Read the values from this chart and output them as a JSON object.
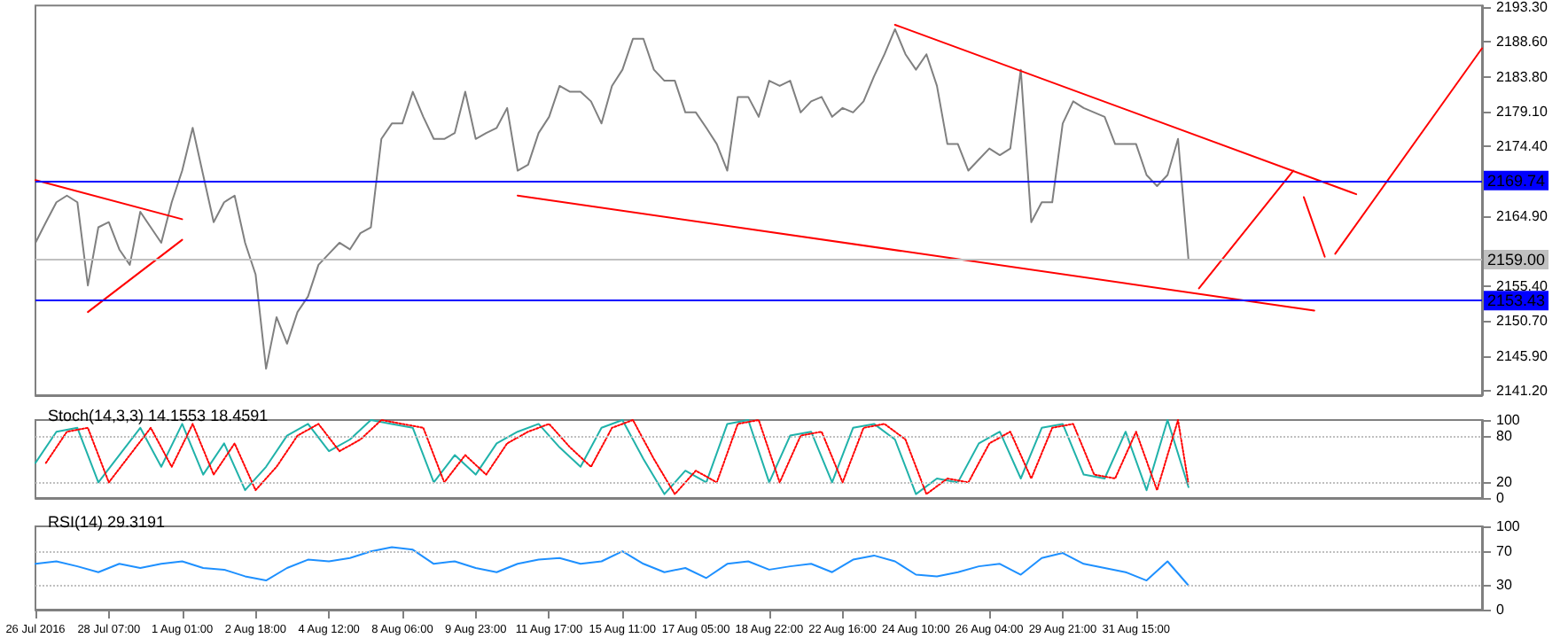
{
  "chart_data": [
    {
      "type": "line",
      "categories": [
        null,
        null,
        null,
        null,
        null,
        null,
        null,
        null,
        null,
        null,
        null,
        null,
        null,
        null,
        null,
        null,
        null,
        null,
        null,
        null,
        null,
        null,
        null,
        null,
        null,
        null,
        null,
        null,
        null,
        null,
        null,
        null,
        null,
        null,
        null,
        null,
        null,
        null,
        null,
        null,
        null,
        null,
        null,
        null,
        null,
        null,
        null,
        null,
        null,
        null,
        null,
        null,
        null,
        null,
        null,
        null,
        null,
        null,
        null,
        null,
        null,
        null,
        null,
        null,
        null,
        null,
        null,
        null,
        null,
        null,
        null,
        null,
        null,
        null,
        null,
        null,
        null,
        null,
        null,
        null,
        null,
        null,
        null,
        null,
        null,
        null,
        null,
        null,
        null,
        null,
        null,
        null,
        null,
        null,
        null,
        null,
        null,
        null,
        null,
        null,
        null,
        null,
        null,
        null,
        null,
        null,
        null,
        null,
        null,
        null,
        null,
        null,
        null,
        null,
        null,
        null,
        null,
        null,
        null,
        null,
        null,
        null,
        null,
        null,
        null,
        null,
        null,
        null,
        null,
        null,
        null,
        null,
        null,
        null,
        null,
        null,
        null,
        null,
        null
      ],
      "series": [
        {
          "color": "#808080",
          "values": [
            2161.3,
            2164.1,
            2166.8,
            2167.7,
            2166.8,
            2155.5,
            2163.4,
            2164.1,
            2160.4,
            2158.3,
            2165.5,
            2163.4,
            2161.3,
            2166.8,
            2171.1,
            2176.9,
            2170.5,
            2164.1,
            2166.8,
            2167.7,
            2161.3,
            2157.0,
            2144.2,
            2151.2,
            2147.6,
            2151.9,
            2154.0,
            2158.3,
            2159.8,
            2161.3,
            2160.4,
            2162.6,
            2163.4,
            2175.4,
            2177.5,
            2177.5,
            2181.8,
            2178.4,
            2175.4,
            2175.4,
            2176.2,
            2181.8,
            2175.4,
            2176.2,
            2176.9,
            2179.6,
            2171.1,
            2171.9,
            2176.2,
            2178.4,
            2182.6,
            2181.8,
            2181.8,
            2180.5,
            2177.5,
            2182.6,
            2184.8,
            2189.0,
            2189.0,
            2184.8,
            2183.3,
            2183.3,
            2179.0,
            2179.0,
            2176.9,
            2174.7,
            2171.1,
            2181.1,
            2181.1,
            2178.4,
            2183.3,
            2182.6,
            2183.3,
            2179.0,
            2180.5,
            2181.1,
            2178.4,
            2179.6,
            2179.0,
            2180.5,
            2183.9,
            2186.9,
            2190.3,
            2186.9,
            2184.8,
            2186.9,
            2182.6,
            2174.7,
            2174.7,
            2171.1,
            2172.6,
            2174.1,
            2173.2,
            2174.1,
            2184.8,
            2164.1,
            2166.8,
            2166.8,
            2177.5,
            2180.5,
            2179.6,
            2179.0,
            2178.4,
            2174.7,
            2174.7,
            2174.7,
            2170.5,
            2169.0,
            2170.5,
            2175.4,
            2159.0,
            null,
            null,
            null,
            null,
            null,
            null,
            null,
            null,
            null,
            null,
            null,
            null,
            null,
            null,
            null,
            null,
            null,
            null,
            null,
            null,
            null,
            null,
            null,
            null,
            null,
            null,
            null,
            null
          ]
        },
        {
          "type": "line",
          "color": "#ff0000",
          "values": [
            2169.8,
            null,
            null,
            null,
            null,
            null,
            null,
            null,
            null,
            null,
            null,
            null,
            null,
            null,
            2164.5,
            null,
            null,
            null,
            null,
            null,
            null,
            null,
            null,
            null,
            null,
            null,
            null,
            null,
            null,
            null,
            null,
            null,
            null,
            null,
            null,
            null,
            null,
            null,
            null,
            null,
            null,
            null,
            null,
            null,
            null,
            null,
            null,
            null,
            null,
            null,
            null,
            null,
            null,
            null,
            null,
            null,
            null,
            null,
            null,
            null,
            null,
            null,
            null,
            null,
            null,
            null,
            null,
            null,
            null,
            null,
            null,
            null,
            null,
            null,
            null,
            null,
            null,
            null,
            null,
            null,
            null,
            null,
            null,
            null,
            null,
            null,
            null,
            null,
            null,
            null,
            null,
            null,
            null,
            null,
            null,
            null,
            null,
            null,
            null,
            null,
            null,
            null,
            null,
            null,
            null,
            null,
            null,
            null,
            null,
            null,
            null,
            null,
            null,
            null,
            null,
            null,
            null,
            null,
            null,
            null,
            null,
            null,
            null,
            null,
            null,
            null,
            null,
            null,
            null,
            null,
            null,
            null,
            null,
            null,
            null,
            null,
            null,
            null,
            null
          ]
        },
        {
          "type": "line",
          "color": "#ff0000",
          "values": [
            null,
            null,
            null,
            null,
            null,
            2151.9,
            null,
            null,
            null,
            null,
            null,
            null,
            null,
            null,
            2161.7,
            null,
            null,
            null,
            null,
            null,
            null,
            null,
            null,
            null,
            null,
            null,
            null,
            null,
            null,
            null,
            null,
            null,
            null,
            null,
            null,
            null,
            null,
            null,
            null,
            null,
            null,
            null,
            null,
            null,
            null,
            null,
            null,
            null,
            null,
            null,
            null,
            null,
            null,
            null,
            null,
            null,
            null,
            null,
            null,
            null,
            null,
            null,
            null,
            null,
            null,
            null,
            null,
            null,
            null,
            null,
            null,
            null,
            null,
            null,
            null,
            null,
            null,
            null,
            null,
            null,
            null,
            null,
            null,
            null,
            null,
            null,
            null,
            null,
            null,
            null,
            null,
            null,
            null,
            null,
            null,
            null,
            null,
            null,
            null,
            null,
            null,
            null,
            null,
            null,
            null,
            null,
            null,
            null,
            null,
            null,
            null,
            null,
            null,
            null,
            null,
            null,
            null,
            null,
            null,
            null,
            null,
            null,
            null,
            null,
            null,
            null,
            null,
            null,
            null,
            null,
            null,
            null,
            null,
            null,
            null,
            null,
            null,
            null,
            null
          ]
        },
        {
          "type": "line",
          "color": "#ff0000",
          "values": [
            null,
            null,
            null,
            null,
            null,
            null,
            null,
            null,
            null,
            null,
            null,
            null,
            null,
            null,
            null,
            null,
            null,
            null,
            null,
            null,
            null,
            null,
            null,
            null,
            null,
            null,
            null,
            null,
            null,
            null,
            null,
            null,
            null,
            null,
            null,
            null,
            null,
            null,
            null,
            null,
            null,
            null,
            null,
            null,
            null,
            null,
            2167.7,
            null,
            null,
            null,
            null,
            null,
            null,
            null,
            null,
            null,
            null,
            null,
            null,
            null,
            null,
            null,
            null,
            null,
            null,
            null,
            null,
            null,
            null,
            null,
            null,
            null,
            null,
            null,
            null,
            null,
            null,
            null,
            null,
            null,
            null,
            null,
            null,
            null,
            null,
            null,
            null,
            null,
            null,
            null,
            null,
            null,
            null,
            null,
            null,
            null,
            null,
            null,
            null,
            null,
            null,
            null,
            null,
            null,
            null,
            null,
            null,
            null,
            null,
            null,
            null,
            null,
            null,
            null,
            null,
            null,
            null,
            null,
            null,
            null,
            null,
            null,
            2152.1,
            null,
            null,
            null,
            null,
            null,
            null,
            null,
            null,
            null,
            null,
            null,
            null,
            null,
            null,
            null,
            null
          ]
        },
        {
          "type": "line",
          "color": "#ff0000",
          "values": [
            null,
            null,
            null,
            null,
            null,
            null,
            null,
            null,
            null,
            null,
            null,
            null,
            null,
            null,
            null,
            null,
            null,
            null,
            null,
            null,
            null,
            null,
            null,
            null,
            null,
            null,
            null,
            null,
            null,
            null,
            null,
            null,
            null,
            null,
            null,
            null,
            null,
            null,
            null,
            null,
            null,
            null,
            null,
            null,
            null,
            null,
            null,
            null,
            null,
            null,
            null,
            null,
            null,
            null,
            null,
            null,
            null,
            null,
            null,
            null,
            null,
            null,
            null,
            null,
            null,
            null,
            null,
            null,
            null,
            null,
            null,
            null,
            null,
            null,
            null,
            null,
            null,
            null,
            null,
            null,
            null,
            null,
            2190.9,
            null,
            null,
            null,
            null,
            null,
            null,
            null,
            null,
            null,
            null,
            null,
            null,
            null,
            null,
            null,
            null,
            null,
            null,
            null,
            null,
            null,
            null,
            null,
            null,
            null,
            null,
            null,
            null,
            null,
            null,
            null,
            null,
            null,
            null,
            null,
            null,
            null,
            null,
            null,
            null,
            null,
            null,
            null,
            2167.9,
            null,
            null,
            null,
            null,
            null,
            null,
            null,
            null,
            null,
            null,
            null,
            null
          ]
        },
        {
          "type": "line",
          "color": "#ff0000",
          "values": [
            null,
            null,
            null,
            null,
            null,
            null,
            null,
            null,
            null,
            null,
            null,
            null,
            null,
            null,
            null,
            null,
            null,
            null,
            null,
            null,
            null,
            null,
            null,
            null,
            null,
            null,
            null,
            null,
            null,
            null,
            null,
            null,
            null,
            null,
            null,
            null,
            null,
            null,
            null,
            null,
            null,
            null,
            null,
            null,
            null,
            null,
            null,
            null,
            null,
            null,
            null,
            null,
            null,
            null,
            null,
            null,
            null,
            null,
            null,
            null,
            null,
            null,
            null,
            null,
            null,
            null,
            null,
            null,
            null,
            null,
            null,
            null,
            null,
            null,
            null,
            null,
            null,
            null,
            null,
            null,
            null,
            null,
            null,
            null,
            null,
            null,
            null,
            null,
            null,
            null,
            null,
            null,
            null,
            null,
            null,
            null,
            null,
            null,
            null,
            null,
            null,
            null,
            null,
            null,
            null,
            null,
            null,
            null,
            null,
            null,
            null,
            2155.1,
            null,
            null,
            null,
            null,
            null,
            null,
            null,
            null,
            2171.1,
            null,
            null,
            null,
            null,
            null,
            null,
            null,
            null,
            null,
            null,
            null,
            null,
            null,
            null,
            null,
            null,
            null,
            null
          ]
        },
        {
          "type": "line",
          "color": "#ff0000",
          "values": [
            null,
            null,
            null,
            null,
            null,
            null,
            null,
            null,
            null,
            null,
            null,
            null,
            null,
            null,
            null,
            null,
            null,
            null,
            null,
            null,
            null,
            null,
            null,
            null,
            null,
            null,
            null,
            null,
            null,
            null,
            null,
            null,
            null,
            null,
            null,
            null,
            null,
            null,
            null,
            null,
            null,
            null,
            null,
            null,
            null,
            null,
            null,
            null,
            null,
            null,
            null,
            null,
            null,
            null,
            null,
            null,
            null,
            null,
            null,
            null,
            null,
            null,
            null,
            null,
            null,
            null,
            null,
            null,
            null,
            null,
            null,
            null,
            null,
            null,
            null,
            null,
            null,
            null,
            null,
            null,
            null,
            null,
            null,
            null,
            null,
            null,
            null,
            null,
            null,
            null,
            null,
            null,
            null,
            null,
            null,
            null,
            null,
            null,
            null,
            null,
            null,
            null,
            null,
            null,
            null,
            null,
            null,
            null,
            null,
            null,
            null,
            null,
            null,
            null,
            null,
            null,
            null,
            null,
            null,
            null,
            null,
            2167.5,
            null,
            2159.4,
            null,
            null,
            null,
            null,
            null,
            null,
            null,
            null,
            null,
            null,
            null,
            null,
            null,
            null,
            null
          ]
        },
        {
          "type": "line",
          "color": "#ff0000",
          "values": [
            null,
            null,
            null,
            null,
            null,
            null,
            null,
            null,
            null,
            null,
            null,
            null,
            null,
            null,
            null,
            null,
            null,
            null,
            null,
            null,
            null,
            null,
            null,
            null,
            null,
            null,
            null,
            null,
            null,
            null,
            null,
            null,
            null,
            null,
            null,
            null,
            null,
            null,
            null,
            null,
            null,
            null,
            null,
            null,
            null,
            null,
            null,
            null,
            null,
            null,
            null,
            null,
            null,
            null,
            null,
            null,
            null,
            null,
            null,
            null,
            null,
            null,
            null,
            null,
            null,
            null,
            null,
            null,
            null,
            null,
            null,
            null,
            null,
            null,
            null,
            null,
            null,
            null,
            null,
            null,
            null,
            null,
            null,
            null,
            null,
            null,
            null,
            null,
            null,
            null,
            null,
            null,
            null,
            null,
            null,
            null,
            null,
            null,
            null,
            null,
            null,
            null,
            null,
            null,
            null,
            null,
            null,
            null,
            null,
            null,
            null,
            null,
            null,
            null,
            null,
            null,
            null,
            null,
            null,
            null,
            null,
            null,
            null,
            null,
            2159.8,
            null,
            null,
            null,
            null,
            null,
            null,
            null,
            null,
            null,
            null,
            null,
            null,
            null,
            2187.7
          ]
        }
      ],
      "ylim": [
        2140.6,
        2193.5
      ],
      "yticks": [
        {
          "value": 2141.2,
          "label": "2141.20"
        },
        {
          "value": 2145.9,
          "label": "2145.90"
        },
        {
          "value": 2150.7,
          "label": "2150.70"
        },
        {
          "value": 2155.4,
          "label": "2155.40"
        },
        {
          "value": 2160.2,
          "label": null
        },
        {
          "value": 2164.9,
          "label": "2164.90"
        },
        {
          "value": 2174.4,
          "label": "2174.40"
        },
        {
          "value": 2179.1,
          "label": "2179.10"
        },
        {
          "value": 2183.8,
          "label": "2183.80"
        },
        {
          "value": 2188.6,
          "label": "2188.60"
        },
        {
          "value": 2193.3,
          "label": "2193.30"
        }
      ],
      "ref_lines": [
        {
          "axis": "y",
          "value": 2169.74,
          "label": "2169.74",
          "color": "#0000ff"
        },
        {
          "axis": "y",
          "value": 2153.43,
          "label": "2153.43",
          "color": "#0000ff"
        },
        {
          "axis": "y",
          "value": 2159.0,
          "label": "2159.00",
          "color": "#c0c0c0"
        }
      ],
      "tick_labels": "y"
    },
    {
      "type": "line",
      "title": "Stoch(14,3,3) 14.1553 18.4591",
      "categories": [
        null,
        null,
        null,
        null,
        null,
        null,
        null,
        null,
        null,
        null,
        null,
        null,
        null,
        null,
        null,
        null,
        null,
        null,
        null,
        null,
        null,
        null,
        null,
        null,
        null,
        null,
        null,
        null,
        null,
        null,
        null,
        null,
        null,
        null,
        null,
        null,
        null,
        null,
        null,
        null,
        null,
        null,
        null,
        null,
        null,
        null,
        null,
        null,
        null,
        null,
        null,
        null,
        null,
        null,
        null,
        null,
        null,
        null,
        null,
        null,
        null,
        null,
        null,
        null,
        null,
        null,
        null,
        null,
        null,
        null,
        null,
        null,
        null,
        null,
        null,
        null,
        null,
        null,
        null,
        null,
        null,
        null,
        null,
        null,
        null,
        null,
        null,
        null,
        null,
        null,
        null,
        null,
        null,
        null,
        null,
        null,
        null,
        null,
        null,
        null,
        null,
        null,
        null,
        null,
        null,
        null,
        null,
        null,
        null,
        null,
        null,
        null,
        null,
        null,
        null,
        null,
        null,
        null,
        null,
        null,
        null,
        null,
        null,
        null,
        null,
        null,
        null,
        null,
        null,
        null,
        null,
        null,
        null,
        null,
        null,
        null,
        null,
        null,
        null
      ],
      "series": [
        {
          "color": "#20b2aa",
          "values": [
            45,
            null,
            85,
            null,
            90,
            null,
            20,
            null,
            55,
            null,
            90,
            null,
            40,
            null,
            95,
            null,
            30,
            null,
            70,
            null,
            10,
            null,
            40,
            null,
            80,
            null,
            95,
            null,
            60,
            null,
            75,
            null,
            100,
            null,
            95,
            null,
            90,
            null,
            20,
            null,
            55,
            null,
            30,
            null,
            70,
            null,
            85,
            null,
            95,
            null,
            65,
            null,
            40,
            null,
            90,
            null,
            100,
            null,
            50,
            null,
            5,
            null,
            35,
            null,
            20,
            null,
            95,
            null,
            100,
            null,
            20,
            null,
            80,
            null,
            85,
            null,
            20,
            null,
            90,
            null,
            95,
            null,
            75,
            null,
            5,
            null,
            25,
            null,
            20,
            null,
            70,
            null,
            85,
            null,
            25,
            null,
            90,
            null,
            95,
            null,
            30,
            null,
            25,
            null,
            85,
            null,
            10,
            null,
            100,
            null,
            14,
            null,
            null,
            null,
            null,
            null,
            null,
            null,
            null,
            null,
            null,
            null,
            null,
            null,
            null,
            null,
            null,
            null,
            null,
            null,
            null,
            null,
            null,
            null,
            null,
            null,
            null,
            null,
            null
          ]
        },
        {
          "color": "#ff0000",
          "line_style": "dotted",
          "values": [
            null,
            45,
            null,
            85,
            null,
            90,
            null,
            20,
            null,
            55,
            null,
            90,
            null,
            40,
            null,
            95,
            null,
            30,
            null,
            70,
            null,
            10,
            null,
            40,
            null,
            80,
            null,
            95,
            null,
            60,
            null,
            75,
            null,
            100,
            null,
            95,
            null,
            90,
            null,
            20,
            null,
            55,
            null,
            30,
            null,
            70,
            null,
            85,
            null,
            95,
            null,
            65,
            null,
            40,
            null,
            90,
            null,
            100,
            null,
            50,
            null,
            5,
            null,
            35,
            null,
            20,
            null,
            95,
            null,
            100,
            null,
            20,
            null,
            80,
            null,
            85,
            null,
            20,
            null,
            90,
            null,
            95,
            null,
            75,
            null,
            5,
            null,
            25,
            null,
            20,
            null,
            70,
            null,
            85,
            null,
            25,
            null,
            90,
            null,
            95,
            null,
            30,
            null,
            25,
            null,
            85,
            null,
            10,
            null,
            100,
            18,
            null,
            null,
            null,
            null,
            null,
            null,
            null,
            null,
            null,
            null,
            null,
            null,
            null,
            null,
            null,
            null,
            null,
            null,
            null,
            null,
            null,
            null,
            null,
            null,
            null,
            null,
            null,
            null
          ]
        }
      ],
      "ylim": [
        0,
        100
      ],
      "yticks": [
        0,
        20,
        80,
        100
      ],
      "ref_lines": [
        {
          "axis": "y",
          "value": 20,
          "color": "#c0c0c0",
          "line_style": "dotted"
        },
        {
          "axis": "y",
          "value": 80,
          "color": "#c0c0c0",
          "line_style": "dotted"
        }
      ],
      "tick_labels": "y"
    },
    {
      "type": "line",
      "title": "RSI(14) 29.3191",
      "categories": [
        "26 Jul 2016",
        null,
        null,
        null,
        null,
        null,
        null,
        "28 Jul 07:00",
        null,
        null,
        null,
        null,
        null,
        null,
        "1 Aug 01:00",
        null,
        null,
        null,
        null,
        null,
        null,
        "2 Aug 18:00",
        null,
        null,
        null,
        null,
        null,
        null,
        "4 Aug 12:00",
        null,
        null,
        null,
        null,
        null,
        null,
        "8 Aug 06:00",
        null,
        null,
        null,
        null,
        null,
        null,
        "9 Aug 23:00",
        null,
        null,
        null,
        null,
        null,
        null,
        "11 Aug 17:00",
        null,
        null,
        null,
        null,
        null,
        null,
        "15 Aug 11:00",
        null,
        null,
        null,
        null,
        null,
        null,
        "17 Aug 05:00",
        null,
        null,
        null,
        null,
        null,
        null,
        "18 Aug 22:00",
        null,
        null,
        null,
        null,
        null,
        null,
        "22 Aug 16:00",
        null,
        null,
        null,
        null,
        null,
        null,
        "24 Aug 10:00",
        null,
        null,
        null,
        null,
        null,
        null,
        "26 Aug 04:00",
        null,
        null,
        null,
        null,
        null,
        null,
        "29 Aug 21:00",
        null,
        null,
        null,
        null,
        null,
        null,
        "31 Aug 15:00",
        null,
        null,
        null,
        null,
        null,
        null,
        null,
        null,
        null,
        null,
        null,
        null,
        null,
        null,
        null,
        null,
        null,
        null,
        null,
        null,
        null,
        null,
        null,
        null,
        null,
        null,
        null,
        null,
        null,
        null,
        null,
        null,
        null
      ],
      "series": [
        {
          "color": "#1e90ff",
          "values": [
            55,
            null,
            58,
            null,
            52,
            null,
            45,
            null,
            55,
            null,
            50,
            null,
            55,
            null,
            58,
            null,
            50,
            null,
            48,
            null,
            40,
            null,
            35,
            null,
            50,
            null,
            60,
            null,
            58,
            null,
            62,
            null,
            70,
            null,
            75,
            null,
            72,
            null,
            55,
            null,
            58,
            null,
            50,
            null,
            45,
            null,
            55,
            null,
            60,
            null,
            62,
            null,
            55,
            null,
            58,
            null,
            70,
            null,
            55,
            null,
            45,
            null,
            50,
            null,
            38,
            null,
            55,
            null,
            58,
            null,
            48,
            null,
            52,
            null,
            55,
            null,
            45,
            null,
            60,
            null,
            65,
            null,
            58,
            null,
            42,
            null,
            40,
            null,
            45,
            null,
            52,
            null,
            55,
            null,
            42,
            null,
            62,
            null,
            68,
            null,
            55,
            null,
            50,
            null,
            45,
            null,
            35,
            null,
            58,
            null,
            29,
            null,
            null,
            null,
            null,
            null,
            null,
            null,
            null,
            null,
            null,
            null,
            null,
            null,
            null,
            null,
            null,
            null,
            null,
            null,
            null,
            null,
            null,
            null,
            null,
            null,
            null,
            null,
            null
          ]
        }
      ],
      "ylim": [
        0,
        100
      ],
      "yticks": [
        0,
        30,
        70,
        100
      ],
      "ref_lines": [
        {
          "axis": "y",
          "value": 30,
          "color": "#c0c0c0",
          "line_style": "dotted"
        },
        {
          "axis": "y",
          "value": 70,
          "color": "#c0c0c0",
          "line_style": "dotted"
        }
      ]
    }
  ]
}
